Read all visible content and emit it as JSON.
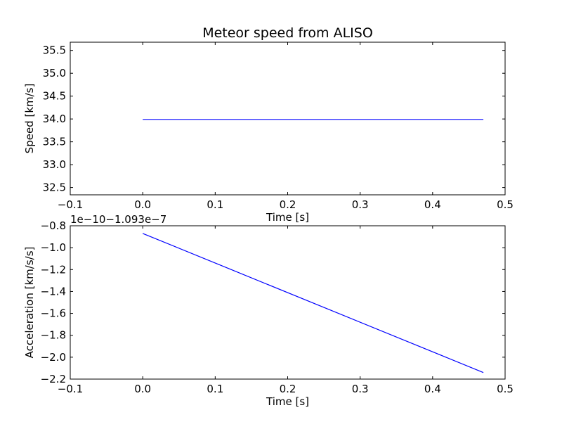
{
  "figure": {
    "background": "#ffffff",
    "line_color": "#0000ff"
  },
  "chart_data": [
    {
      "type": "line",
      "title": "Meteor speed from  ALISO",
      "xlabel": "Time [s]",
      "ylabel": "Speed [km/s]",
      "xlim": [
        -0.1,
        0.5
      ],
      "ylim": [
        32.34,
        35.68
      ],
      "xticks": [
        -0.1,
        0.0,
        0.1,
        0.2,
        0.3,
        0.4,
        0.5
      ],
      "xtick_labels": [
        "−0.1",
        "0.0",
        "0.1",
        "0.2",
        "0.3",
        "0.4",
        "0.5"
      ],
      "yticks": [
        32.5,
        33.0,
        33.5,
        34.0,
        34.5,
        35.0,
        35.5
      ],
      "ytick_labels": [
        "32.5",
        "33.0",
        "33.5",
        "34.0",
        "34.5",
        "35.0",
        "35.5"
      ],
      "grid": false,
      "series": [
        {
          "x": [
            0.0,
            0.47
          ],
          "y": [
            33.99,
            33.99
          ]
        }
      ]
    },
    {
      "type": "line",
      "title": "",
      "xlabel": "Time [s]",
      "ylabel": "Acceleration [km/s/s]",
      "offset_text": "1e−10−1.093e−7",
      "xlim": [
        -0.1,
        0.5
      ],
      "ylim": [
        -2.2,
        -0.8
      ],
      "xticks": [
        -0.1,
        0.0,
        0.1,
        0.2,
        0.3,
        0.4,
        0.5
      ],
      "xtick_labels": [
        "−0.1",
        "0.0",
        "0.1",
        "0.2",
        "0.3",
        "0.4",
        "0.5"
      ],
      "yticks": [
        -2.2,
        -2.0,
        -1.8,
        -1.6,
        -1.4,
        -1.2,
        -1.0,
        -0.8
      ],
      "ytick_labels": [
        "−2.2",
        "−2.0",
        "−1.8",
        "−1.6",
        "−1.4",
        "−1.2",
        "−1.0",
        "−0.8"
      ],
      "grid": false,
      "series": [
        {
          "x": [
            0.0,
            0.47
          ],
          "y": [
            -0.87,
            -2.14
          ]
        }
      ]
    }
  ]
}
